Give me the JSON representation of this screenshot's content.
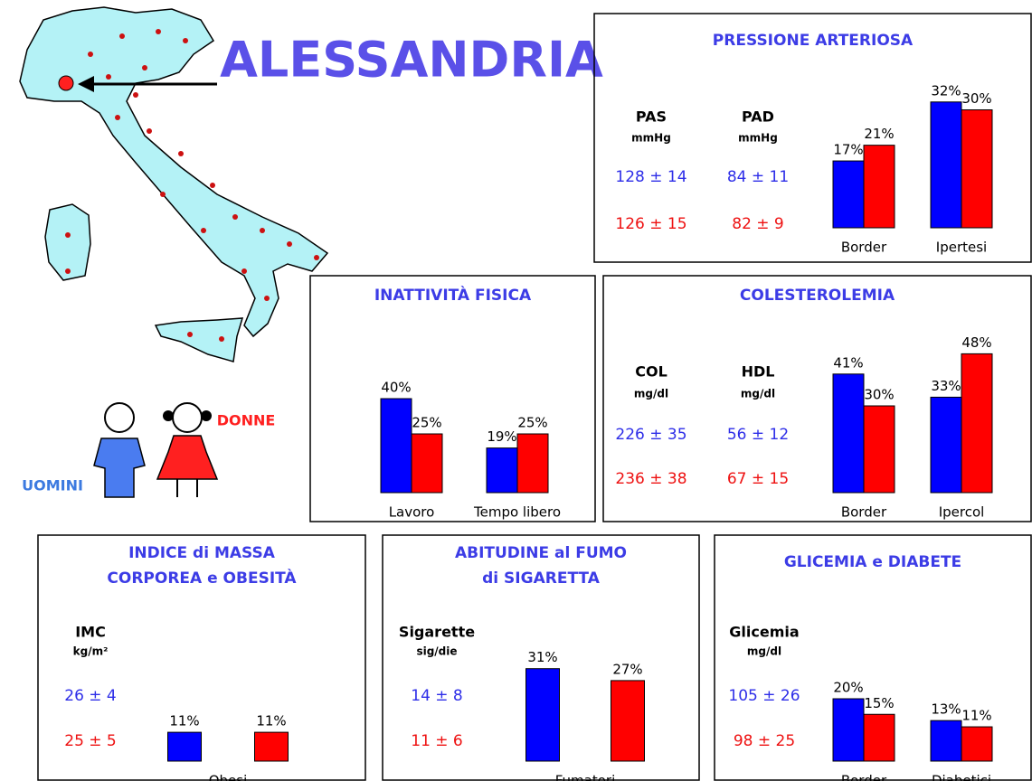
{
  "title": "ALESSANDRIA",
  "legend": [
    "UOMINI",
    "DONNE"
  ],
  "chart_data": [
    {
      "type": "bar",
      "title": [
        "PRESSIONE ARTERIOSA"
      ],
      "measures": [
        {
          "name": "PAS",
          "unit": "mmHg",
          "values": [
            "128 ± 14",
            "126 ± 15"
          ]
        },
        {
          "name": "PAD",
          "unit": "mmHg",
          "values": [
            "84 ± 11",
            "82 ± 9"
          ]
        }
      ],
      "categories": [
        "Border",
        "Ipertesi"
      ],
      "series": [
        {
          "color": "#0000ff",
          "values": [
            17,
            32
          ],
          "value_labels": [
            "17%",
            "32%"
          ]
        },
        {
          "color": "#ff0000",
          "values": [
            21,
            30
          ],
          "value_labels": [
            "21%",
            "30%"
          ]
        }
      ]
    },
    {
      "type": "bar",
      "title": [
        "INATTIVITÀ FISICA"
      ],
      "measures": [],
      "categories": [
        "Lavoro",
        "Tempo libero"
      ],
      "series": [
        {
          "color": "#0000ff",
          "values": [
            40,
            19
          ],
          "value_labels": [
            "40%",
            "19%"
          ]
        },
        {
          "color": "#ff0000",
          "values": [
            25,
            25
          ],
          "value_labels": [
            "25%",
            "25%"
          ]
        }
      ]
    },
    {
      "type": "bar",
      "title": [
        "COLESTEROLEMIA"
      ],
      "measures": [
        {
          "name": "COL",
          "unit": "mg/dl",
          "values": [
            "226 ± 35",
            "236 ± 38"
          ]
        },
        {
          "name": "HDL",
          "unit": "mg/dl",
          "values": [
            "56 ± 12",
            "67 ± 15"
          ]
        }
      ],
      "categories": [
        "Border",
        "Ipercol"
      ],
      "series": [
        {
          "color": "#0000ff",
          "values": [
            41,
            33
          ],
          "value_labels": [
            "41%",
            "33%"
          ]
        },
        {
          "color": "#ff0000",
          "values": [
            30,
            48
          ],
          "value_labels": [
            "30%",
            "48%"
          ]
        }
      ]
    },
    {
      "type": "bar",
      "title": [
        "INDICE di MASSA",
        "CORPOREA e OBESITÀ"
      ],
      "measures": [
        {
          "name": "IMC",
          "unit": "kg/m²",
          "values": [
            "26 ± 4",
            "25 ± 5"
          ]
        }
      ],
      "categories": [
        "Obesi"
      ],
      "series": [
        {
          "color": "#0000ff",
          "values": [
            11
          ],
          "value_labels": [
            "11%"
          ]
        },
        {
          "color": "#ff0000",
          "values": [
            11
          ],
          "value_labels": [
            "11%"
          ]
        }
      ]
    },
    {
      "type": "bar",
      "title": [
        "ABITUDINE al FUMO",
        "di SIGARETTA"
      ],
      "measures": [
        {
          "name": "Sigarette",
          "unit": "sig/die",
          "values": [
            "14 ± 8",
            "11 ± 6"
          ]
        }
      ],
      "categories": [
        "Fumatori"
      ],
      "series": [
        {
          "color": "#0000ff",
          "values": [
            31
          ],
          "value_labels": [
            "31%"
          ]
        },
        {
          "color": "#ff0000",
          "values": [
            27
          ],
          "value_labels": [
            "27%"
          ]
        }
      ]
    },
    {
      "type": "bar",
      "title": [
        "GLICEMIA e DIABETE"
      ],
      "measures": [
        {
          "name": "Glicemia",
          "unit": "mg/dl",
          "values": [
            "105 ± 26",
            "98 ± 25"
          ]
        }
      ],
      "categories": [
        "Border",
        "Diabetici"
      ],
      "series": [
        {
          "color": "#0000ff",
          "values": [
            20,
            13
          ],
          "value_labels": [
            "20%",
            "13%"
          ]
        },
        {
          "color": "#ff0000",
          "values": [
            15,
            11
          ],
          "value_labels": [
            "15%",
            "11%"
          ]
        }
      ]
    }
  ]
}
